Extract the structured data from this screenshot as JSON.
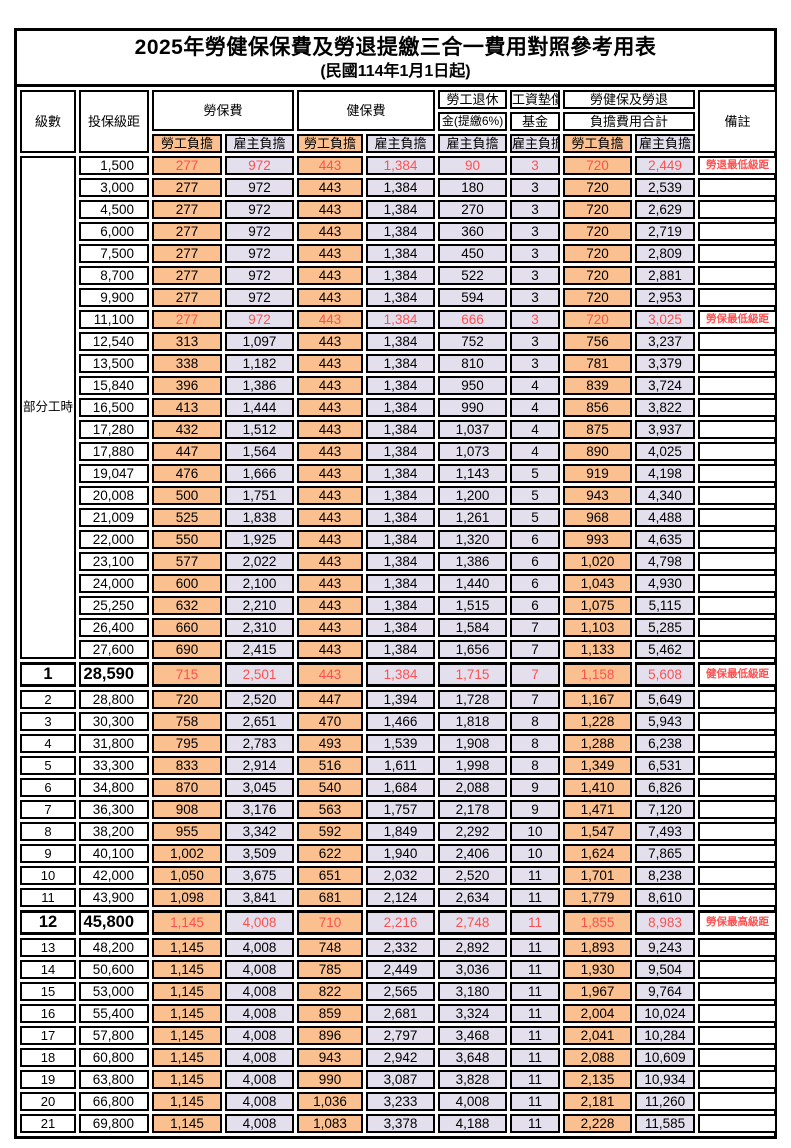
{
  "title": "2025年勞健保保費及勞退提繳三合一費用對照參考用表",
  "subtitle": "(民國114年1月1日起)",
  "colors": {
    "labor_share_bg": "#FAC090",
    "employer_share_bg": "#E4DFEC",
    "highlight_text": "#FF5050",
    "border": "#000000"
  },
  "header": {
    "level": "級數",
    "bracket": "投保級距",
    "labor_ins": "勞保費",
    "health_ins": "健保費",
    "pension_line1": "勞工退休",
    "pension_line2": "金(提繳6%)",
    "wage_fund_line1": "工資墊償",
    "wage_fund_line2": "基金",
    "total_line1": "勞健保及勞退",
    "total_line2": "負擔費用合計",
    "remark": "備註",
    "labor_share": "勞工負擔",
    "employer_share": "雇主負擔"
  },
  "part_time_label": "部分工時",
  "rows": [
    {
      "level": "",
      "salary": "1,500",
      "v": [
        "277",
        "972",
        "443",
        "1,384",
        "90",
        "3",
        "720",
        "2,449"
      ],
      "remark": "勞退最低級距",
      "hl": true,
      "bold": false
    },
    {
      "level": "",
      "salary": "3,000",
      "v": [
        "277",
        "972",
        "443",
        "1,384",
        "180",
        "3",
        "720",
        "2,539"
      ],
      "remark": "",
      "hl": false,
      "bold": false
    },
    {
      "level": "",
      "salary": "4,500",
      "v": [
        "277",
        "972",
        "443",
        "1,384",
        "270",
        "3",
        "720",
        "2,629"
      ],
      "remark": "",
      "hl": false,
      "bold": false
    },
    {
      "level": "",
      "salary": "6,000",
      "v": [
        "277",
        "972",
        "443",
        "1,384",
        "360",
        "3",
        "720",
        "2,719"
      ],
      "remark": "",
      "hl": false,
      "bold": false
    },
    {
      "level": "",
      "salary": "7,500",
      "v": [
        "277",
        "972",
        "443",
        "1,384",
        "450",
        "3",
        "720",
        "2,809"
      ],
      "remark": "",
      "hl": false,
      "bold": false
    },
    {
      "level": "",
      "salary": "8,700",
      "v": [
        "277",
        "972",
        "443",
        "1,384",
        "522",
        "3",
        "720",
        "2,881"
      ],
      "remark": "",
      "hl": false,
      "bold": false
    },
    {
      "level": "",
      "salary": "9,900",
      "v": [
        "277",
        "972",
        "443",
        "1,384",
        "594",
        "3",
        "720",
        "2,953"
      ],
      "remark": "",
      "hl": false,
      "bold": false
    },
    {
      "level": "",
      "salary": "11,100",
      "v": [
        "277",
        "972",
        "443",
        "1,384",
        "666",
        "3",
        "720",
        "3,025"
      ],
      "remark": "勞保最低級距",
      "hl": true,
      "bold": false
    },
    {
      "level": "",
      "salary": "12,540",
      "v": [
        "313",
        "1,097",
        "443",
        "1,384",
        "752",
        "3",
        "756",
        "3,237"
      ],
      "remark": "",
      "hl": false,
      "bold": false
    },
    {
      "level": "",
      "salary": "13,500",
      "v": [
        "338",
        "1,182",
        "443",
        "1,384",
        "810",
        "3",
        "781",
        "3,379"
      ],
      "remark": "",
      "hl": false,
      "bold": false
    },
    {
      "level": "",
      "salary": "15,840",
      "v": [
        "396",
        "1,386",
        "443",
        "1,384",
        "950",
        "4",
        "839",
        "3,724"
      ],
      "remark": "",
      "hl": false,
      "bold": false
    },
    {
      "level": "",
      "salary": "16,500",
      "v": [
        "413",
        "1,444",
        "443",
        "1,384",
        "990",
        "4",
        "856",
        "3,822"
      ],
      "remark": "",
      "hl": false,
      "bold": false
    },
    {
      "level": "",
      "salary": "17,280",
      "v": [
        "432",
        "1,512",
        "443",
        "1,384",
        "1,037",
        "4",
        "875",
        "3,937"
      ],
      "remark": "",
      "hl": false,
      "bold": false
    },
    {
      "level": "",
      "salary": "17,880",
      "v": [
        "447",
        "1,564",
        "443",
        "1,384",
        "1,073",
        "4",
        "890",
        "4,025"
      ],
      "remark": "",
      "hl": false,
      "bold": false
    },
    {
      "level": "",
      "salary": "19,047",
      "v": [
        "476",
        "1,666",
        "443",
        "1,384",
        "1,143",
        "5",
        "919",
        "4,198"
      ],
      "remark": "",
      "hl": false,
      "bold": false
    },
    {
      "level": "",
      "salary": "20,008",
      "v": [
        "500",
        "1,751",
        "443",
        "1,384",
        "1,200",
        "5",
        "943",
        "4,340"
      ],
      "remark": "",
      "hl": false,
      "bold": false
    },
    {
      "level": "",
      "salary": "21,009",
      "v": [
        "525",
        "1,838",
        "443",
        "1,384",
        "1,261",
        "5",
        "968",
        "4,488"
      ],
      "remark": "",
      "hl": false,
      "bold": false
    },
    {
      "level": "",
      "salary": "22,000",
      "v": [
        "550",
        "1,925",
        "443",
        "1,384",
        "1,320",
        "6",
        "993",
        "4,635"
      ],
      "remark": "",
      "hl": false,
      "bold": false
    },
    {
      "level": "",
      "salary": "23,100",
      "v": [
        "577",
        "2,022",
        "443",
        "1,384",
        "1,386",
        "6",
        "1,020",
        "4,798"
      ],
      "remark": "",
      "hl": false,
      "bold": false
    },
    {
      "level": "",
      "salary": "24,000",
      "v": [
        "600",
        "2,100",
        "443",
        "1,384",
        "1,440",
        "6",
        "1,043",
        "4,930"
      ],
      "remark": "",
      "hl": false,
      "bold": false
    },
    {
      "level": "",
      "salary": "25,250",
      "v": [
        "632",
        "2,210",
        "443",
        "1,384",
        "1,515",
        "6",
        "1,075",
        "5,115"
      ],
      "remark": "",
      "hl": false,
      "bold": false
    },
    {
      "level": "",
      "salary": "26,400",
      "v": [
        "660",
        "2,310",
        "443",
        "1,384",
        "1,584",
        "7",
        "1,103",
        "5,285"
      ],
      "remark": "",
      "hl": false,
      "bold": false
    },
    {
      "level": "",
      "salary": "27,600",
      "v": [
        "690",
        "2,415",
        "443",
        "1,384",
        "1,656",
        "7",
        "1,133",
        "5,462"
      ],
      "remark": "",
      "hl": false,
      "bold": false
    },
    {
      "level": "1",
      "salary": "28,590",
      "v": [
        "715",
        "2,501",
        "443",
        "1,384",
        "1,715",
        "7",
        "1,158",
        "5,608"
      ],
      "remark": "健保最低級距",
      "hl": true,
      "bold": true
    },
    {
      "level": "2",
      "salary": "28,800",
      "v": [
        "720",
        "2,520",
        "447",
        "1,394",
        "1,728",
        "7",
        "1,167",
        "5,649"
      ],
      "remark": "",
      "hl": false,
      "bold": false
    },
    {
      "level": "3",
      "salary": "30,300",
      "v": [
        "758",
        "2,651",
        "470",
        "1,466",
        "1,818",
        "8",
        "1,228",
        "5,943"
      ],
      "remark": "",
      "hl": false,
      "bold": false
    },
    {
      "level": "4",
      "salary": "31,800",
      "v": [
        "795",
        "2,783",
        "493",
        "1,539",
        "1,908",
        "8",
        "1,288",
        "6,238"
      ],
      "remark": "",
      "hl": false,
      "bold": false
    },
    {
      "level": "5",
      "salary": "33,300",
      "v": [
        "833",
        "2,914",
        "516",
        "1,611",
        "1,998",
        "8",
        "1,349",
        "6,531"
      ],
      "remark": "",
      "hl": false,
      "bold": false
    },
    {
      "level": "6",
      "salary": "34,800",
      "v": [
        "870",
        "3,045",
        "540",
        "1,684",
        "2,088",
        "9",
        "1,410",
        "6,826"
      ],
      "remark": "",
      "hl": false,
      "bold": false
    },
    {
      "level": "7",
      "salary": "36,300",
      "v": [
        "908",
        "3,176",
        "563",
        "1,757",
        "2,178",
        "9",
        "1,471",
        "7,120"
      ],
      "remark": "",
      "hl": false,
      "bold": false
    },
    {
      "level": "8",
      "salary": "38,200",
      "v": [
        "955",
        "3,342",
        "592",
        "1,849",
        "2,292",
        "10",
        "1,547",
        "7,493"
      ],
      "remark": "",
      "hl": false,
      "bold": false
    },
    {
      "level": "9",
      "salary": "40,100",
      "v": [
        "1,002",
        "3,509",
        "622",
        "1,940",
        "2,406",
        "10",
        "1,624",
        "7,865"
      ],
      "remark": "",
      "hl": false,
      "bold": false
    },
    {
      "level": "10",
      "salary": "42,000",
      "v": [
        "1,050",
        "3,675",
        "651",
        "2,032",
        "2,520",
        "11",
        "1,701",
        "8,238"
      ],
      "remark": "",
      "hl": false,
      "bold": false
    },
    {
      "level": "11",
      "salary": "43,900",
      "v": [
        "1,098",
        "3,841",
        "681",
        "2,124",
        "2,634",
        "11",
        "1,779",
        "8,610"
      ],
      "remark": "",
      "hl": false,
      "bold": false
    },
    {
      "level": "12",
      "salary": "45,800",
      "v": [
        "1,145",
        "4,008",
        "710",
        "2,216",
        "2,748",
        "11",
        "1,855",
        "8,983"
      ],
      "remark": "勞保最高級距",
      "hl": true,
      "bold": true
    },
    {
      "level": "13",
      "salary": "48,200",
      "v": [
        "1,145",
        "4,008",
        "748",
        "2,332",
        "2,892",
        "11",
        "1,893",
        "9,243"
      ],
      "remark": "",
      "hl": false,
      "bold": false
    },
    {
      "level": "14",
      "salary": "50,600",
      "v": [
        "1,145",
        "4,008",
        "785",
        "2,449",
        "3,036",
        "11",
        "1,930",
        "9,504"
      ],
      "remark": "",
      "hl": false,
      "bold": false
    },
    {
      "level": "15",
      "salary": "53,000",
      "v": [
        "1,145",
        "4,008",
        "822",
        "2,565",
        "3,180",
        "11",
        "1,967",
        "9,764"
      ],
      "remark": "",
      "hl": false,
      "bold": false
    },
    {
      "level": "16",
      "salary": "55,400",
      "v": [
        "1,145",
        "4,008",
        "859",
        "2,681",
        "3,324",
        "11",
        "2,004",
        "10,024"
      ],
      "remark": "",
      "hl": false,
      "bold": false
    },
    {
      "level": "17",
      "salary": "57,800",
      "v": [
        "1,145",
        "4,008",
        "896",
        "2,797",
        "3,468",
        "11",
        "2,041",
        "10,284"
      ],
      "remark": "",
      "hl": false,
      "bold": false
    },
    {
      "level": "18",
      "salary": "60,800",
      "v": [
        "1,145",
        "4,008",
        "943",
        "2,942",
        "3,648",
        "11",
        "2,088",
        "10,609"
      ],
      "remark": "",
      "hl": false,
      "bold": false
    },
    {
      "level": "19",
      "salary": "63,800",
      "v": [
        "1,145",
        "4,008",
        "990",
        "3,087",
        "3,828",
        "11",
        "2,135",
        "10,934"
      ],
      "remark": "",
      "hl": false,
      "bold": false
    },
    {
      "level": "20",
      "salary": "66,800",
      "v": [
        "1,145",
        "4,008",
        "1,036",
        "3,233",
        "4,008",
        "11",
        "2,181",
        "11,260"
      ],
      "remark": "",
      "hl": false,
      "bold": false
    },
    {
      "level": "21",
      "salary": "69,800",
      "v": [
        "1,145",
        "4,008",
        "1,083",
        "3,378",
        "4,188",
        "11",
        "2,228",
        "11,585"
      ],
      "remark": "",
      "hl": false,
      "bold": false
    }
  ]
}
